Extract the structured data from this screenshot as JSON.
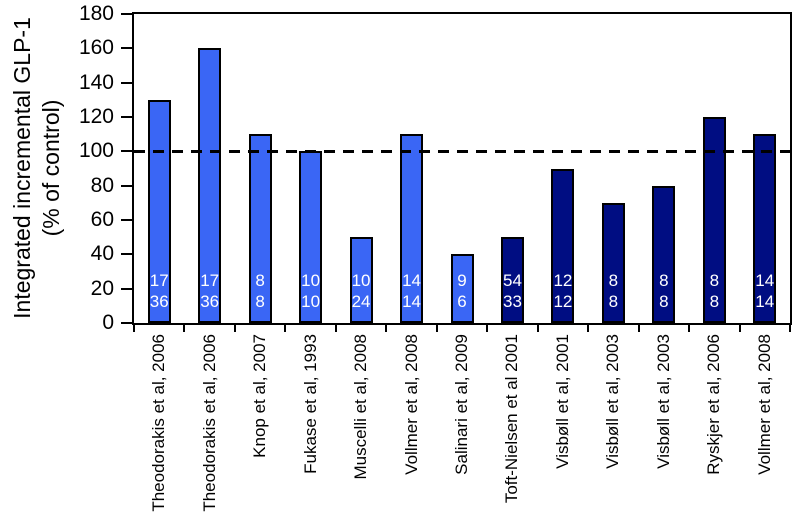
{
  "chart_data": {
    "type": "bar",
    "title": "",
    "ylabel_line1": "Integrated incremental GLP-1",
    "ylabel_line2": "(% of control)",
    "ylim": [
      0,
      180
    ],
    "ytick_step": 20,
    "reference_line": 100,
    "grid": false,
    "legend": false,
    "layout_hint": "vertical bars, rotated x labels, dashed reference line at 100 drawn over bars",
    "colors": {
      "bar_light": "#3A66F5",
      "bar_dark": "#000D82",
      "bar_border": "#000000",
      "bar_label_text": "#FFFFFF",
      "axis": "#000000",
      "background": "#FFFFFF"
    },
    "bars": [
      {
        "label": "Theodorakis et al, 2006",
        "value": 130,
        "group": "light",
        "n_top": "17",
        "n_bottom": "36"
      },
      {
        "label": "Theodorakis et al, 2006",
        "value": 160,
        "group": "light",
        "n_top": "17",
        "n_bottom": "36"
      },
      {
        "label": "Knop et al, 2007",
        "value": 110,
        "group": "light",
        "n_top": "8",
        "n_bottom": "8"
      },
      {
        "label": "Fukase et al, 1993",
        "value": 100,
        "group": "light",
        "n_top": "10",
        "n_bottom": "10"
      },
      {
        "label": "Muscelli et al, 2008",
        "value": 50,
        "group": "light",
        "n_top": "10",
        "n_bottom": "24"
      },
      {
        "label": "Vollmer et al, 2008",
        "value": 110,
        "group": "light",
        "n_top": "14",
        "n_bottom": "14"
      },
      {
        "label": "Salinari et al, 2009",
        "value": 40,
        "group": "light",
        "n_top": "9",
        "n_bottom": "6"
      },
      {
        "label": "Toft-Nielsen et al 2001",
        "value": 50,
        "group": "dark",
        "n_top": "54",
        "n_bottom": "33"
      },
      {
        "label": "Visbøll et al, 2001",
        "value": 90,
        "group": "dark",
        "n_top": "12",
        "n_bottom": "12"
      },
      {
        "label": "Visbøll et al, 2003",
        "value": 70,
        "group": "dark",
        "n_top": "8",
        "n_bottom": "8"
      },
      {
        "label": "Visbøll et al, 2003",
        "value": 80,
        "group": "dark",
        "n_top": "8",
        "n_bottom": "8"
      },
      {
        "label": "Ryskjer et al, 2006",
        "value": 120,
        "group": "dark",
        "n_top": "8",
        "n_bottom": "8"
      },
      {
        "label": "Vollmer et al, 2008",
        "value": 110,
        "group": "dark",
        "n_top": "14",
        "n_bottom": "14"
      }
    ]
  }
}
